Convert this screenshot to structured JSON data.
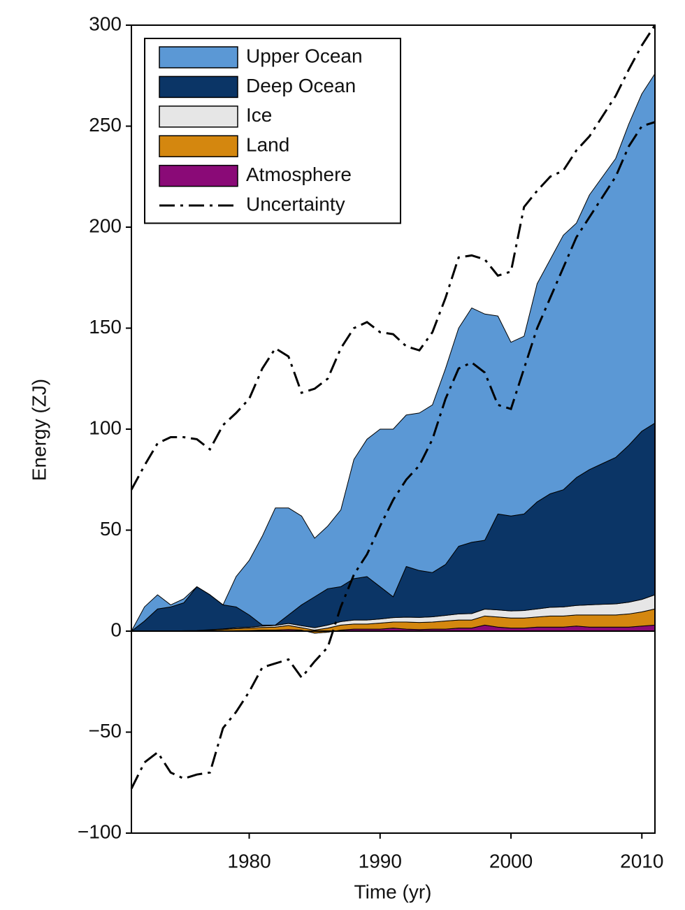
{
  "chart_data": {
    "type": "stacked-area",
    "x_label": "Time (yr)",
    "y_label": "Energy (ZJ)",
    "x": [
      1971,
      1972,
      1973,
      1974,
      1975,
      1976,
      1977,
      1978,
      1979,
      1980,
      1981,
      1982,
      1983,
      1984,
      1985,
      1986,
      1987,
      1988,
      1989,
      1990,
      1991,
      1992,
      1993,
      1994,
      1995,
      1996,
      1997,
      1998,
      1999,
      2000,
      2001,
      2002,
      2003,
      2004,
      2005,
      2006,
      2007,
      2008,
      2009,
      2010,
      2011
    ],
    "series": [
      {
        "name": "Upper Ocean",
        "color": "#5b98d5",
        "values": [
          0,
          7,
          7,
          1,
          2,
          0,
          0,
          0,
          15,
          27,
          44,
          58,
          53,
          44,
          29,
          31,
          38,
          59,
          68,
          78,
          83,
          75,
          78,
          83,
          97,
          108,
          116,
          112,
          98,
          86,
          88,
          108,
          116,
          126,
          126,
          136,
          142,
          148,
          159,
          167,
          173
        ]
      },
      {
        "name": "Deep Ocean",
        "color": "#0b3566",
        "values": [
          0,
          5,
          11,
          12,
          13.8,
          21.7,
          17.3,
          11.9,
          10.3,
          6,
          0.5,
          0.2,
          4.2,
          10.3,
          15.3,
          18,
          17.3,
          20.5,
          21.5,
          16,
          10.3,
          25.1,
          23.2,
          21.9,
          25.2,
          33.5,
          35.3,
          34.1,
          47.5,
          47,
          47.8,
          53,
          56.2,
          58,
          63.3,
          67,
          69.7,
          72.5,
          77.7,
          83.3,
          85
        ]
      },
      {
        "name": "Ice",
        "color": "#e6e6e6",
        "values": [
          0,
          0,
          0,
          0,
          0,
          0,
          0.2,
          0.3,
          0.5,
          0.5,
          0.7,
          0.8,
          1,
          1,
          1.2,
          1.5,
          1.7,
          2,
          2,
          2,
          2.2,
          2.4,
          2.5,
          2.6,
          2.8,
          3,
          3.2,
          3.4,
          3.5,
          3.5,
          3.7,
          4,
          4.3,
          4.5,
          4.7,
          5,
          5.3,
          5.5,
          5.8,
          6.2,
          7
        ]
      },
      {
        "name": "Land",
        "color": "#d4870f",
        "values": [
          0,
          0,
          0,
          0,
          0.2,
          0.3,
          0.5,
          0.8,
          1,
          1.2,
          1.3,
          1.5,
          2,
          1.2,
          1.5,
          2,
          2.5,
          2.5,
          2.5,
          3,
          3,
          3.5,
          3.5,
          3.5,
          4,
          4,
          4,
          4.5,
          5,
          5,
          5,
          5,
          5.5,
          5.5,
          5.5,
          6,
          6,
          6,
          6.5,
          7,
          8
        ]
      },
      {
        "name": "Atmosphere",
        "color": "#8a0a77",
        "values": [
          0,
          0,
          0,
          0,
          0,
          0,
          0,
          0,
          0.2,
          0.3,
          0.5,
          0.5,
          0.8,
          0.5,
          -1,
          -0.5,
          0.5,
          1,
          1,
          1,
          1.5,
          1,
          0.8,
          1,
          1,
          1.5,
          1.5,
          3,
          2,
          1.5,
          1.5,
          2,
          2,
          2,
          2.5,
          2,
          2,
          2,
          2,
          2.5,
          3
        ]
      }
    ],
    "uncertainty": {
      "name": "Uncertainty",
      "color": "#000000",
      "upper": [
        70,
        82,
        93,
        96,
        96,
        95,
        90,
        102,
        108,
        115,
        130,
        140,
        136,
        118,
        120,
        125,
        140,
        150,
        153,
        148,
        147,
        141,
        139,
        148,
        165,
        185,
        186,
        184,
        176,
        178,
        210,
        218,
        225,
        228,
        238,
        245,
        255,
        265,
        278,
        290,
        300
      ],
      "lower": [
        -78,
        -65,
        -60,
        -70,
        -73,
        -71,
        -70,
        -48,
        -40,
        -30,
        -18,
        -16,
        -14,
        -23,
        -15,
        -8,
        12,
        28,
        38,
        52,
        65,
        75,
        82,
        95,
        115,
        130,
        133,
        128,
        112,
        110,
        130,
        150,
        165,
        180,
        195,
        205,
        215,
        225,
        240,
        250,
        252
      ]
    },
    "xlim": [
      1971,
      2011
    ],
    "xticks": [
      1980,
      1990,
      2000,
      2010
    ],
    "ylim": [
      -100,
      300
    ],
    "yticks": [
      {
        "value": -100,
        "label": "−100"
      },
      {
        "value": -50,
        "label": "−50"
      },
      0,
      50,
      100,
      150,
      200,
      250,
      300
    ],
    "legend": "upper-left"
  }
}
